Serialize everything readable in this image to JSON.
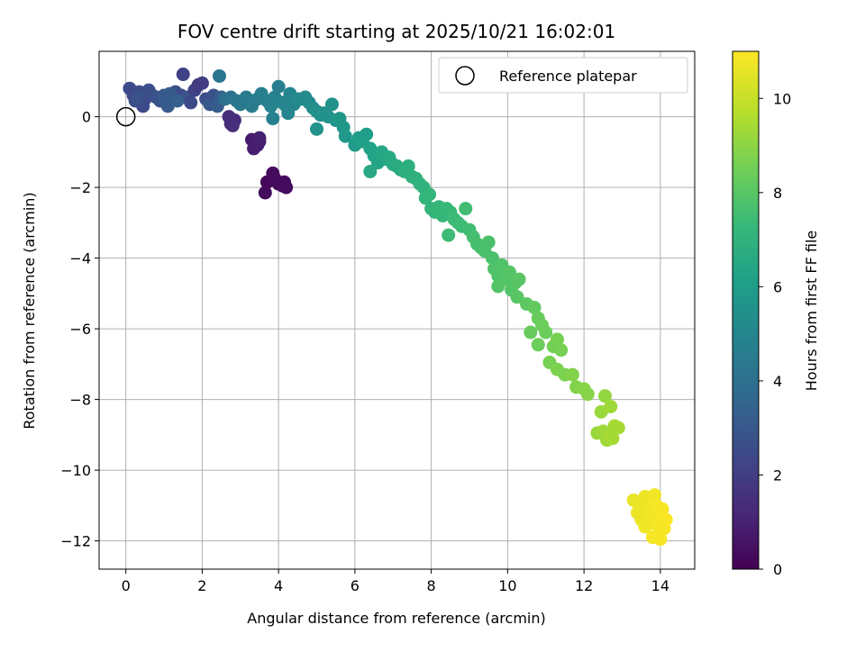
{
  "chart_data": {
    "type": "scatter",
    "title": "FOV centre drift starting at 2025/10/21 16:02:01",
    "xlabel": "Angular distance from reference (arcmin)",
    "ylabel": "Rotation from reference (arcmin)",
    "xlim": [
      -0.7,
      14.9
    ],
    "ylim": [
      -12.8,
      1.85
    ],
    "xticks": [
      0,
      2,
      4,
      6,
      8,
      10,
      12,
      14
    ],
    "yticks": [
      0,
      -2,
      -4,
      -6,
      -8,
      -10,
      -12
    ],
    "grid": true,
    "legend": {
      "position": "top-right",
      "entries": [
        "Reference platepar"
      ]
    },
    "reference_point": {
      "name": "Reference platepar",
      "x": 0,
      "y": 0
    },
    "colorbar": {
      "label": "Hours from first FF file",
      "colormap": "viridis",
      "range": [
        0,
        11
      ],
      "ticks": [
        0,
        2,
        4,
        6,
        8,
        10
      ]
    },
    "colors": [
      "#440154",
      "#482878",
      "#3e4989",
      "#31688e",
      "#26828e",
      "#1f9e89",
      "#35b779",
      "#6ece58",
      "#b5de2b",
      "#fde725"
    ],
    "points": [
      [
        3.7,
        -1.85,
        0.2
      ],
      [
        3.9,
        -1.75,
        0.3
      ],
      [
        4.0,
        -1.9,
        0.25
      ],
      [
        4.1,
        -1.95,
        0.35
      ],
      [
        4.2,
        -2.0,
        0.3
      ],
      [
        3.85,
        -1.6,
        0.3
      ],
      [
        3.65,
        -2.15,
        0.3
      ],
      [
        4.15,
        -1.85,
        0.35
      ],
      [
        3.3,
        -0.65,
        0.8
      ],
      [
        3.5,
        -0.7,
        0.85
      ],
      [
        3.35,
        -0.9,
        0.9
      ],
      [
        3.45,
        -0.8,
        0.9
      ],
      [
        3.5,
        -0.6,
        1.0
      ],
      [
        2.75,
        -0.2,
        1.3
      ],
      [
        2.85,
        -0.1,
        1.35
      ],
      [
        2.7,
        0.0,
        1.4
      ],
      [
        2.8,
        -0.25,
        1.4
      ],
      [
        0.1,
        0.8,
        2.5
      ],
      [
        0.2,
        0.6,
        2.4
      ],
      [
        0.35,
        0.7,
        2.6
      ],
      [
        0.5,
        0.5,
        2.5
      ],
      [
        0.6,
        0.75,
        2.7
      ],
      [
        0.7,
        0.6,
        2.6
      ],
      [
        0.45,
        0.3,
        2.5
      ],
      [
        0.25,
        0.45,
        2.6
      ],
      [
        0.8,
        0.55,
        2.8
      ],
      [
        0.9,
        0.45,
        2.8
      ],
      [
        1.0,
        0.6,
        3.0
      ],
      [
        1.1,
        0.3,
        3.2
      ],
      [
        1.2,
        0.5,
        3.0
      ],
      [
        1.3,
        0.7,
        2.8
      ],
      [
        1.45,
        0.6,
        2.5
      ],
      [
        1.5,
        1.2,
        2.2
      ],
      [
        1.6,
        0.55,
        2.9
      ],
      [
        1.7,
        0.4,
        2.5
      ],
      [
        1.8,
        0.75,
        2.2
      ],
      [
        1.9,
        0.9,
        2.0
      ],
      [
        2.0,
        0.95,
        2.0
      ],
      [
        2.1,
        0.5,
        2.6
      ],
      [
        2.2,
        0.35,
        3.0
      ],
      [
        2.3,
        0.6,
        2.8
      ],
      [
        2.4,
        0.3,
        3.2
      ],
      [
        2.5,
        0.55,
        3.3
      ],
      [
        2.45,
        1.15,
        4.3
      ],
      [
        0.3,
        0.55,
        2.8
      ],
      [
        1.35,
        0.45,
        3.3
      ],
      [
        1.15,
        0.65,
        3.2
      ],
      [
        1.05,
        0.4,
        3.1
      ],
      [
        2.6,
        0.5,
        4.1
      ],
      [
        2.75,
        0.55,
        4.2
      ],
      [
        2.9,
        0.45,
        4.3
      ],
      [
        3.0,
        0.35,
        4.4
      ],
      [
        3.15,
        0.55,
        4.5
      ],
      [
        3.3,
        0.3,
        4.6
      ],
      [
        3.45,
        0.5,
        4.6
      ],
      [
        3.55,
        0.65,
        4.7
      ],
      [
        3.7,
        0.45,
        4.8
      ],
      [
        3.8,
        0.3,
        4.9
      ],
      [
        3.9,
        0.55,
        4.9
      ],
      [
        4.0,
        0.85,
        4.7
      ],
      [
        4.1,
        0.4,
        5.0
      ],
      [
        4.2,
        0.3,
        5.1
      ],
      [
        3.85,
        -0.05,
        4.8
      ],
      [
        4.3,
        0.65,
        5.0
      ],
      [
        4.4,
        0.35,
        5.1
      ],
      [
        4.5,
        0.5,
        5.2
      ],
      [
        4.6,
        0.5,
        5.3
      ],
      [
        4.7,
        0.55,
        5.3
      ],
      [
        4.8,
        0.4,
        5.3
      ],
      [
        4.9,
        0.25,
        5.4
      ],
      [
        5.0,
        0.15,
        5.5
      ],
      [
        5.1,
        0.05,
        5.5
      ],
      [
        5.2,
        0.1,
        5.6
      ],
      [
        5.3,
        0.0,
        5.6
      ],
      [
        5.4,
        0.35,
        5.6
      ],
      [
        5.5,
        -0.1,
        5.7
      ],
      [
        5.6,
        -0.05,
        5.8
      ],
      [
        5.7,
        -0.3,
        5.8
      ],
      [
        5.75,
        -0.55,
        5.9
      ],
      [
        5.0,
        -0.35,
        5.6
      ],
      [
        4.25,
        0.1,
        5.1
      ],
      [
        6.0,
        -0.8,
        6.0
      ],
      [
        6.1,
        -0.6,
        6.1
      ],
      [
        6.2,
        -0.7,
        6.2
      ],
      [
        6.3,
        -0.5,
        6.1
      ],
      [
        6.4,
        -0.9,
        6.3
      ],
      [
        6.5,
        -1.1,
        6.3
      ],
      [
        6.6,
        -1.3,
        6.4
      ],
      [
        6.7,
        -1.0,
        6.5
      ],
      [
        6.8,
        -1.2,
        6.5
      ],
      [
        6.4,
        -1.55,
        6.6
      ],
      [
        6.9,
        -1.15,
        6.6
      ],
      [
        7.0,
        -1.35,
        6.7
      ],
      [
        7.1,
        -1.4,
        6.7
      ],
      [
        7.2,
        -1.5,
        6.8
      ],
      [
        7.3,
        -1.55,
        6.9
      ],
      [
        7.4,
        -1.4,
        6.9
      ],
      [
        7.5,
        -1.7,
        7.0
      ],
      [
        7.6,
        -1.75,
        7.0
      ],
      [
        7.7,
        -1.9,
        7.1
      ],
      [
        7.8,
        -2.0,
        7.1
      ],
      [
        7.85,
        -2.3,
        7.2
      ],
      [
        7.95,
        -2.2,
        7.2
      ],
      [
        8.0,
        -2.6,
        7.2
      ],
      [
        8.1,
        -2.7,
        7.3
      ],
      [
        8.2,
        -2.55,
        7.3
      ],
      [
        8.3,
        -2.8,
        7.3
      ],
      [
        8.4,
        -2.6,
        7.4
      ],
      [
        8.5,
        -2.7,
        7.4
      ],
      [
        8.6,
        -2.9,
        7.5
      ],
      [
        8.7,
        -3.0,
        7.5
      ],
      [
        8.8,
        -3.1,
        7.5
      ],
      [
        8.9,
        -2.6,
        7.6
      ],
      [
        9.0,
        -3.2,
        7.6
      ],
      [
        9.1,
        -3.4,
        7.7
      ],
      [
        8.45,
        -3.35,
        7.5
      ],
      [
        9.2,
        -3.6,
        7.7
      ],
      [
        9.3,
        -3.7,
        7.7
      ],
      [
        9.4,
        -3.8,
        7.8
      ],
      [
        9.5,
        -3.55,
        7.8
      ],
      [
        9.6,
        -4.0,
        7.8
      ],
      [
        9.65,
        -4.3,
        7.9
      ],
      [
        9.75,
        -4.5,
        7.9
      ],
      [
        9.85,
        -4.2,
        7.9
      ],
      [
        9.95,
        -4.6,
        8.0
      ],
      [
        10.05,
        -4.4,
        8.0
      ],
      [
        10.1,
        -4.9,
        8.0
      ],
      [
        10.2,
        -4.7,
        8.0
      ],
      [
        10.25,
        -5.1,
        8.1
      ],
      [
        10.3,
        -4.6,
        8.1
      ],
      [
        9.75,
        -4.8,
        8.0
      ],
      [
        10.5,
        -5.3,
        8.2
      ],
      [
        10.7,
        -5.4,
        8.3
      ],
      [
        10.8,
        -5.7,
        8.4
      ],
      [
        10.9,
        -5.9,
        8.5
      ],
      [
        11.0,
        -6.1,
        8.5
      ],
      [
        10.6,
        -6.1,
        8.4
      ],
      [
        11.2,
        -6.5,
        8.6
      ],
      [
        10.8,
        -6.45,
        8.5
      ],
      [
        11.3,
        -6.3,
        8.7
      ],
      [
        11.4,
        -6.6,
        8.7
      ],
      [
        11.1,
        -6.95,
        8.7
      ],
      [
        11.3,
        -7.15,
        8.8
      ],
      [
        11.5,
        -7.3,
        8.8
      ],
      [
        11.7,
        -7.3,
        8.9
      ],
      [
        11.8,
        -7.65,
        8.9
      ],
      [
        12.0,
        -7.7,
        9.0
      ],
      [
        12.1,
        -7.85,
        9.0
      ],
      [
        12.35,
        -8.95,
        9.3
      ],
      [
        12.5,
        -8.9,
        9.4
      ],
      [
        12.45,
        -8.35,
        9.3
      ],
      [
        12.55,
        -7.9,
        9.2
      ],
      [
        12.6,
        -9.15,
        9.4
      ],
      [
        12.7,
        -9.0,
        9.5
      ],
      [
        12.8,
        -8.75,
        9.5
      ],
      [
        12.9,
        -8.8,
        9.5
      ],
      [
        12.7,
        -8.2,
        9.4
      ],
      [
        12.75,
        -9.1,
        9.5
      ],
      [
        13.3,
        -10.85,
        10.6
      ],
      [
        13.4,
        -11.2,
        10.7
      ],
      [
        13.5,
        -11.4,
        10.7
      ],
      [
        13.6,
        -10.75,
        10.7
      ],
      [
        13.7,
        -11.05,
        10.8
      ],
      [
        13.75,
        -11.5,
        10.8
      ],
      [
        13.85,
        -10.7,
        10.8
      ],
      [
        13.9,
        -11.3,
        10.9
      ],
      [
        13.95,
        -11.8,
        10.9
      ],
      [
        14.0,
        -11.95,
        10.9
      ],
      [
        14.05,
        -11.1,
        10.9
      ],
      [
        14.1,
        -11.65,
        10.9
      ],
      [
        14.15,
        -11.4,
        11.0
      ],
      [
        13.8,
        -11.9,
        10.9
      ],
      [
        13.6,
        -11.6,
        10.8
      ],
      [
        13.45,
        -10.95,
        10.7
      ],
      [
        14.0,
        -11.5,
        10.9
      ],
      [
        13.9,
        -11.0,
        10.9
      ],
      [
        13.7,
        -11.3,
        10.8
      ]
    ]
  }
}
